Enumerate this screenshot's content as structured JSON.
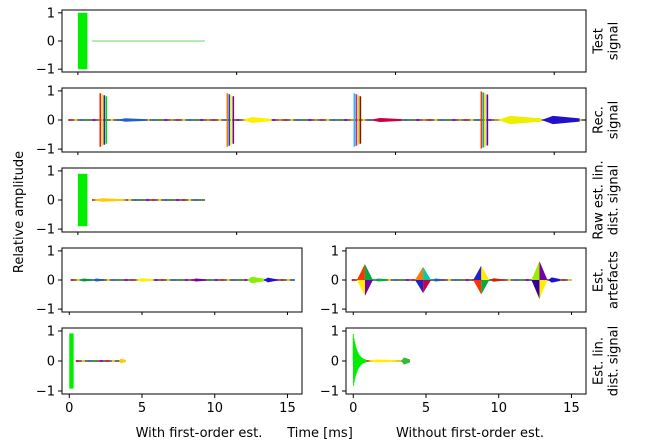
{
  "chart_data": {
    "type": "line",
    "ylabel": "Relative amplitude",
    "xlabel": "Time [ms]",
    "x_caption_left": "With first-order est.",
    "x_caption_right": "Without first-order est.",
    "xlim": [
      -0.5,
      16
    ],
    "ylim": [
      -1.1,
      1.1
    ],
    "xticks": [
      0,
      5,
      10,
      15
    ],
    "yticks": [
      -1,
      0,
      1
    ],
    "panels": [
      {
        "id": "test",
        "label_lines": [
          "Test",
          "signal"
        ],
        "events": [
          {
            "t": 0.15,
            "width": 0.3,
            "amp": 1.0,
            "color": "#00ee00",
            "shape": "block"
          }
        ],
        "tail": {
          "t0": 0.45,
          "t1": 4.0,
          "color": "#33cc33"
        }
      },
      {
        "id": "recorded",
        "label_lines": [
          "Rec.",
          "signal"
        ],
        "events": [
          {
            "t": 0.8,
            "amp": 0.92,
            "colors": [
              "#e41a1c",
              "#ffdd00",
              "#2222cc",
              "#00dd00"
            ],
            "shape": "stripes"
          },
          {
            "t": 4.8,
            "amp": 0.92,
            "colors": [
              "#ff7700",
              "#0044ff",
              "#ffff00",
              "#7700aa"
            ],
            "shape": "stripes"
          },
          {
            "t": 8.8,
            "amp": 0.92,
            "colors": [
              "#00ccff",
              "#ff00aa",
              "#99ff00",
              "#aa0000"
            ],
            "shape": "stripes"
          },
          {
            "t": 12.8,
            "amp": 0.98,
            "colors": [
              "#ff3300",
              "#00aa88",
              "#ffee00",
              "#5500cc"
            ],
            "shape": "stripes"
          },
          {
            "t": 16.8,
            "amp": 0.92,
            "colors": [
              "#ff0066",
              "#00ddaa",
              "#ffcc00",
              "#3300ff"
            ],
            "shape": "stripes"
          }
        ],
        "packets": [
          {
            "t0": 1.2,
            "t1": 2.2,
            "amp": 0.06,
            "color": "#1f5fbf"
          },
          {
            "t0": 5.2,
            "t1": 6.1,
            "amp": 0.1,
            "color": "#ffee00"
          },
          {
            "t0": 9.2,
            "t1": 10.2,
            "amp": 0.07,
            "color": "#cc0044"
          },
          {
            "t0": 13.2,
            "t1": 14.6,
            "amp": 0.14,
            "color": "#eeee00"
          },
          {
            "t0": 14.6,
            "t1": 15.8,
            "amp": 0.14,
            "color": "#2211cc"
          },
          {
            "t0": 17.2,
            "t1": 18.2,
            "amp": 0.05,
            "color": "#00aa44"
          }
        ],
        "baseline": {
          "t0": -0.3,
          "t1": 21.0,
          "colors": [
            "#e41a1c",
            "#ffcc00",
            "#1f77b4",
            "#2ca02c",
            "#9400d3",
            "#ff7f0e"
          ]
        }
      },
      {
        "id": "raw-est",
        "label_lines": [
          "Raw est. lin.",
          "dist. signal"
        ],
        "events": [
          {
            "t": 0.15,
            "width": 0.3,
            "amp": 0.9,
            "color": "#00ee00",
            "shape": "block"
          }
        ],
        "packets": [
          {
            "t0": 0.45,
            "t1": 1.5,
            "amp": 0.06,
            "color": "#ffcc00"
          }
        ],
        "baseline": {
          "t0": 0.45,
          "t1": 4.0,
          "colors": [
            "#e41a1c",
            "#ffcc00",
            "#1f77b4",
            "#2ca02c",
            "#9400d3"
          ]
        }
      }
    ],
    "split_panels": [
      {
        "id": "artefacts",
        "label_lines": [
          "Est.",
          "artefacts"
        ],
        "left": {
          "packets": [
            {
              "t0": 0.7,
              "t1": 1.6,
              "amp": 0.05,
              "color": "#009944"
            },
            {
              "t0": 1.6,
              "t1": 2.4,
              "amp": 0.03,
              "color": "#1f5fbf"
            },
            {
              "t0": 4.6,
              "t1": 5.8,
              "amp": 0.06,
              "color": "#ffee00"
            },
            {
              "t0": 8.4,
              "t1": 9.4,
              "amp": 0.05,
              "color": "#7700aa"
            },
            {
              "t0": 12.2,
              "t1": 13.4,
              "amp": 0.11,
              "color": "#88ee00"
            },
            {
              "t0": 13.4,
              "t1": 14.2,
              "amp": 0.08,
              "color": "#2211cc"
            }
          ],
          "baseline": {
            "t0": 0.1,
            "t1": 15.5,
            "colors": [
              "#e41a1c",
              "#ffcc00",
              "#1f77b4",
              "#2ca02c",
              "#9400d3"
            ]
          }
        },
        "right": {
          "diamonds": [
            {
              "t": 0.8,
              "amp": 0.55,
              "colors": [
                "#ff3300",
                "#00aa44",
                "#7700aa",
                "#ffee00"
              ]
            },
            {
              "t": 4.8,
              "amp": 0.45,
              "colors": [
                "#ff7700",
                "#00ccaa",
                "#cc0044",
                "#2222cc"
              ]
            },
            {
              "t": 8.8,
              "amp": 0.5,
              "colors": [
                "#2222cc",
                "#ffee00",
                "#00aa44",
                "#ff3300"
              ]
            },
            {
              "t": 12.8,
              "amp": 0.65,
              "colors": [
                "#99ee00",
                "#7700aa",
                "#ffee00",
                "#330099"
              ]
            }
          ],
          "packets": [
            {
              "t0": 1.4,
              "t1": 2.4,
              "amp": 0.05,
              "color": "#00aa44"
            },
            {
              "t0": 5.4,
              "t1": 6.2,
              "amp": 0.04,
              "color": "#1f5fbf"
            },
            {
              "t0": 9.4,
              "t1": 10.2,
              "amp": 0.06,
              "color": "#cc2200"
            },
            {
              "t0": 13.4,
              "t1": 14.2,
              "amp": 0.09,
              "color": "#2211cc"
            }
          ],
          "baseline": {
            "t0": -0.1,
            "t1": 15.0,
            "colors": [
              "#e41a1c",
              "#ffcc00",
              "#1f77b4",
              "#2ca02c",
              "#9400d3"
            ]
          }
        }
      },
      {
        "id": "est-lin",
        "label_lines": [
          "Est. lin.",
          "dist. signal"
        ],
        "left": {
          "events": [
            {
              "t": 0.15,
              "width": 0.3,
              "amp": 0.92,
              "color": "#00ee00",
              "shape": "block"
            }
          ],
          "packets": [
            {
              "t0": 3.4,
              "t1": 3.9,
              "amp": 0.08,
              "color": "#ffcc00"
            }
          ],
          "baseline": {
            "t0": 0.45,
            "t1": 3.9,
            "colors": [
              "#e41a1c",
              "#ffcc00",
              "#1f77b4",
              "#2ca02c",
              "#9400d3"
            ]
          }
        },
        "right": {
          "decay": {
            "t0": 0.0,
            "t1": 0.9,
            "amp": 0.9,
            "color": "#00ee00"
          },
          "packets": [
            {
              "t0": 0.9,
              "t1": 3.3,
              "amp": 0.03,
              "color": "#ffee00"
            },
            {
              "t0": 3.3,
              "t1": 3.9,
              "amp": 0.12,
              "color": "#33bb33"
            }
          ],
          "baseline": {
            "t0": 0.9,
            "t1": 3.9,
            "colors": [
              "#e41a1c",
              "#ffcc00",
              "#1f77b4"
            ]
          }
        }
      }
    ]
  }
}
